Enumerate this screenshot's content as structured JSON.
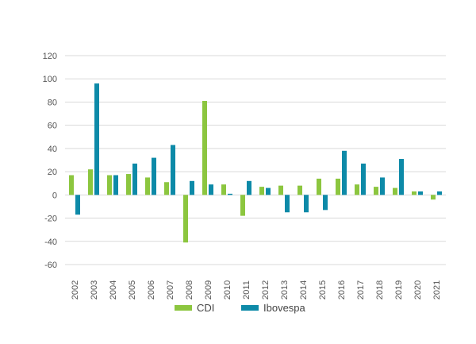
{
  "chart_data": {
    "type": "bar",
    "title": "",
    "xlabel": "",
    "ylabel": "",
    "categories": [
      "2002",
      "2003",
      "2004",
      "2005",
      "2006",
      "2007",
      "2008",
      "2009",
      "2010",
      "2011",
      "2012",
      "2013",
      "2014",
      "2015",
      "2016",
      "2017",
      "2018",
      "2019",
      "2020",
      "2021"
    ],
    "series": [
      {
        "name": "CDI",
        "color": "#8cc63f",
        "values": [
          17,
          22,
          17,
          18,
          15,
          11,
          -41,
          81,
          9,
          -18,
          7,
          8,
          8,
          14,
          14,
          9,
          7,
          6,
          3,
          -4
        ]
      },
      {
        "name": "Ibovespa",
        "color": "#0d8aa8",
        "values": [
          -17,
          96,
          17,
          27,
          32,
          43,
          12,
          9,
          1,
          12,
          6,
          -15,
          -15,
          -13,
          38,
          27,
          15,
          31,
          3,
          3
        ]
      }
    ],
    "ylim": [
      -60,
      120
    ],
    "yticks": [
      "120",
      "100",
      "80",
      "60",
      "40",
      "20",
      "0",
      "-20",
      "-40",
      "-60"
    ],
    "ytick_values": [
      120,
      100,
      80,
      60,
      40,
      20,
      0,
      -20,
      -40,
      -60
    ],
    "grid": true,
    "legend_position": "bottom-center"
  }
}
